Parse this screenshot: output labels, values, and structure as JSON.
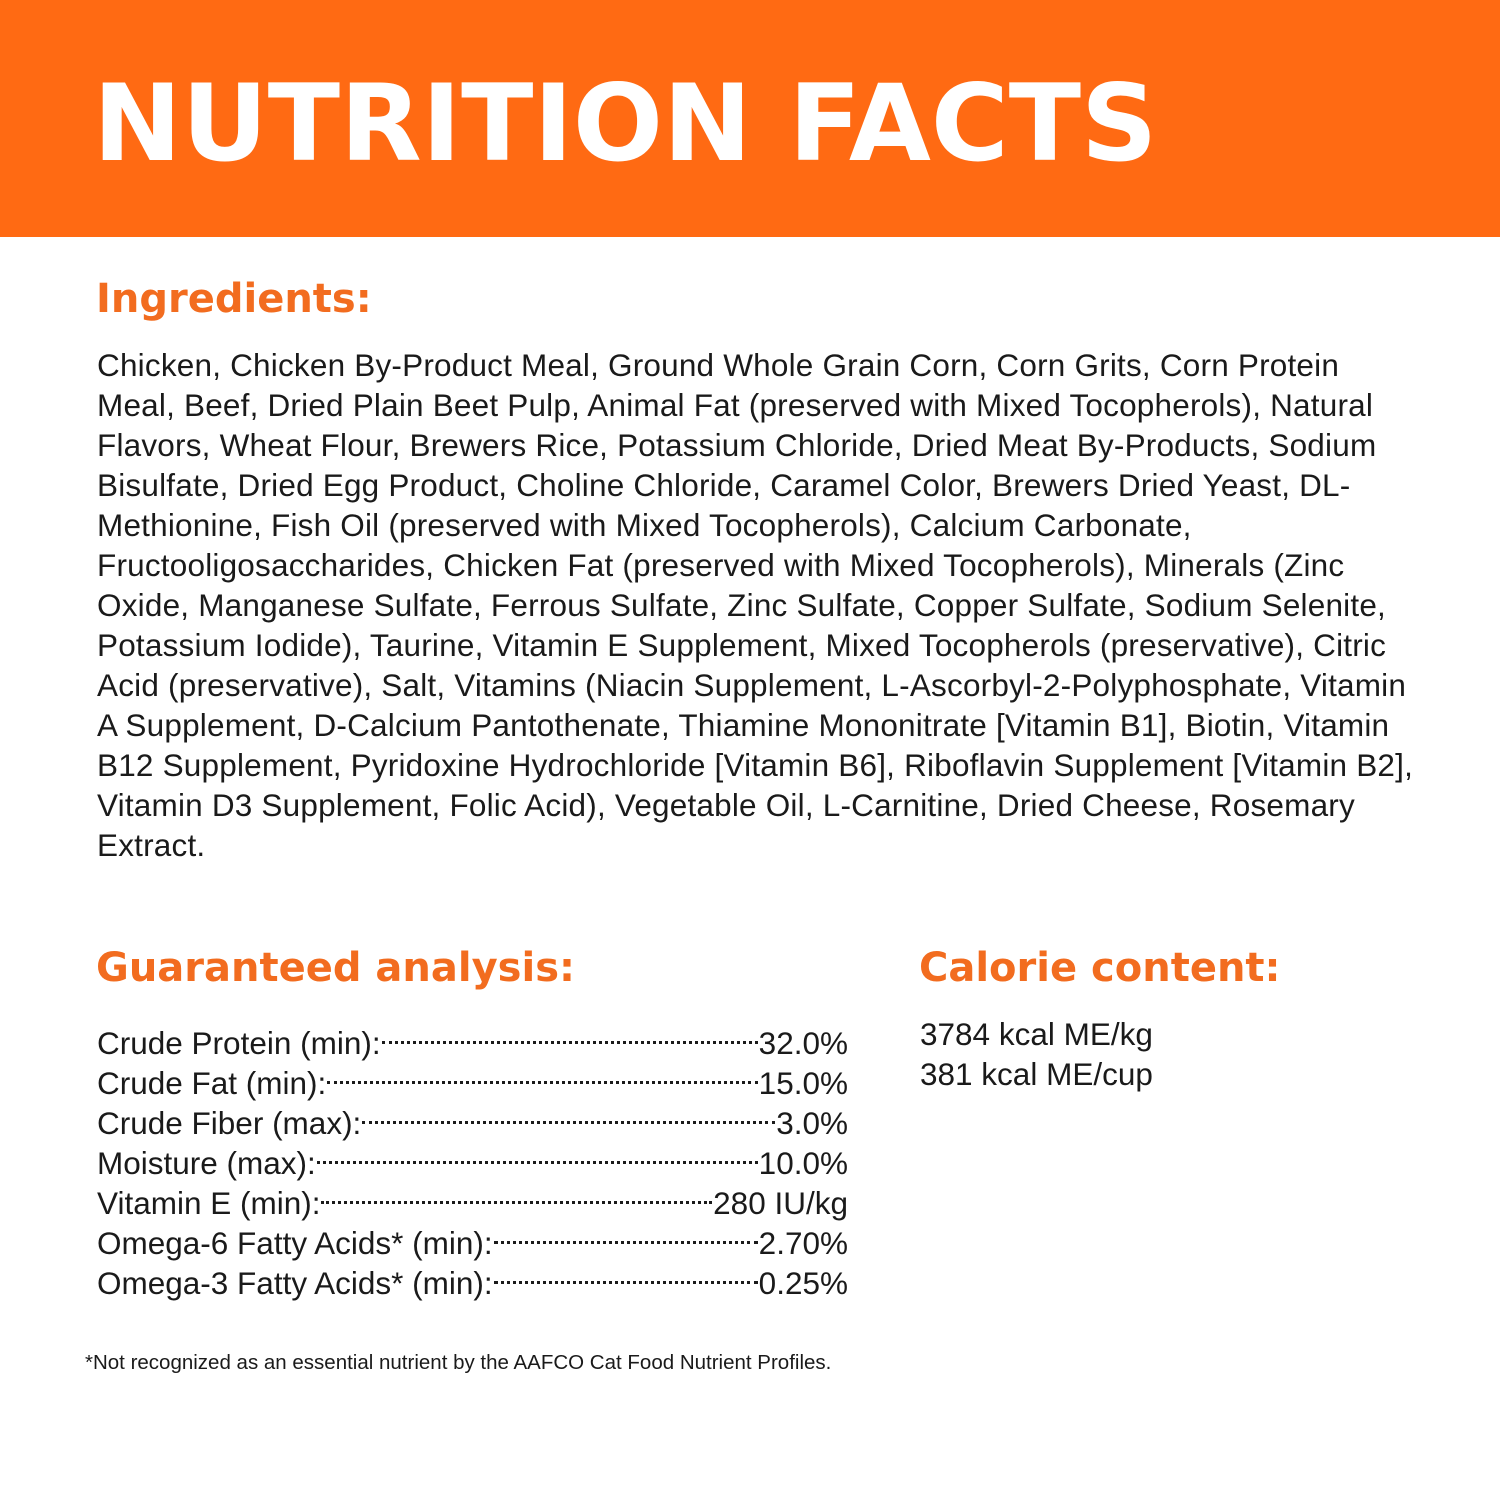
{
  "banner": {
    "title": "NUTRITION FACTS",
    "color": "#ff6a13"
  },
  "accent_color": "#f26c1f",
  "ingredients": {
    "heading": "Ingredients:",
    "text": "Chicken, Chicken By-Product Meal, Ground Whole Grain Corn, Corn Grits, Corn Protein Meal, Beef, Dried Plain Beet Pulp, Animal Fat (preserved with Mixed Tocopherols), Natural Flavors, Wheat Flour, Brewers Rice, Potassium Chloride, Dried Meat By-Products, Sodium Bisulfate, Dried Egg Product, Choline Chloride, Caramel Color, Brewers Dried Yeast, DL-Methionine, Fish Oil (preserved with Mixed Tocopherols), Calcium Carbonate, Fructooligosaccharides, Chicken Fat (preserved with Mixed Tocopherols), Minerals (Zinc Oxide, Manganese Sulfate, Ferrous Sulfate, Zinc Sulfate, Copper Sulfate, Sodium Selenite, Potassium Iodide), Taurine, Vitamin E Supplement, Mixed Tocopherols (preservative), Citric Acid (preservative), Salt, Vitamins (Niacin Supplement, L-Ascorbyl-2-Polyphosphate, Vitamin A Supplement, D-Calcium Pantothenate, Thiamine Mononitrate [Vitamin B1], Biotin, Vitamin B12 Supplement, Pyridoxine Hydrochloride [Vitamin B6], Riboflavin Supplement [Vitamin B2], Vitamin D3 Supplement, Folic Acid), Vegetable Oil, L-Carnitine, Dried Cheese, Rosemary Extract."
  },
  "guaranteed_analysis": {
    "heading": "Guaranteed analysis:",
    "rows": [
      {
        "label": "Crude Protein (min):",
        "value": "32.0%"
      },
      {
        "label": "Crude Fat (min):",
        "value": "15.0%"
      },
      {
        "label": "Crude Fiber (max):",
        "value": "3.0%"
      },
      {
        "label": "Moisture (max):",
        "value": "10.0%"
      },
      {
        "label": "Vitamin E (min):",
        "value": "280 IU/kg"
      },
      {
        "label": "Omega-6 Fatty Acids* (min):",
        "value": "2.70%"
      },
      {
        "label": "Omega-3 Fatty Acids* (min):",
        "value": "0.25%"
      }
    ]
  },
  "calorie_content": {
    "heading": "Calorie content:",
    "lines": [
      "3784 kcal ME/kg",
      "381 kcal ME/cup"
    ]
  },
  "footnote": "*Not recognized as an essential nutrient by the AAFCO Cat Food Nutrient Profiles."
}
